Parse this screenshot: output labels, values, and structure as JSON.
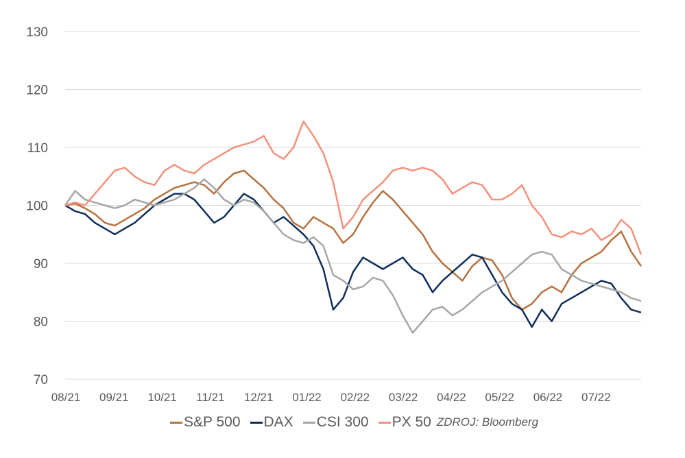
{
  "chart_data": {
    "type": "line",
    "title": "",
    "xlabel": "",
    "ylabel": "",
    "ylim": [
      70,
      130
    ],
    "yticks": [
      70,
      80,
      90,
      100,
      110,
      120,
      130
    ],
    "xticks": [
      "08/21",
      "09/21",
      "10/21",
      "11/21",
      "12/21",
      "01/22",
      "02/22",
      "03/22",
      "04/22",
      "05/22",
      "06/22",
      "07/22"
    ],
    "grid": true,
    "legend_position": "bottom",
    "source": "ZDROJ: Bloomberg",
    "x_note": "weeks since start (0 = 08/21, ~52 = end of 07/22)",
    "series": [
      {
        "name": "S&P 500",
        "color": "#B5713F",
        "values": [
          100,
          100.3,
          99.5,
          98.5,
          97,
          96.5,
          97.5,
          98.5,
          99.5,
          101,
          102,
          103,
          103.5,
          104,
          103.5,
          102,
          104,
          105.5,
          106,
          104.5,
          103,
          101,
          99.5,
          97,
          96,
          98,
          97,
          96,
          93.5,
          95,
          98,
          100.5,
          102.5,
          101,
          99,
          97,
          95,
          92,
          90,
          88.5,
          87,
          89.5,
          91,
          90.5,
          88,
          84,
          82,
          83,
          85,
          86,
          85,
          88,
          90,
          91,
          92,
          94,
          95.5,
          92,
          89.5
        ]
      },
      {
        "name": "DAX",
        "color": "#0E2D5B",
        "values": [
          100,
          99,
          98.5,
          97,
          96,
          95,
          96,
          97,
          98.5,
          100,
          101,
          102,
          102,
          101,
          99,
          97,
          98,
          100,
          102,
          101,
          99,
          97,
          98,
          96.5,
          95,
          93,
          89,
          82,
          84,
          88.5,
          91,
          90,
          89,
          90,
          91,
          89,
          88,
          85,
          87,
          88.5,
          90,
          91.5,
          91,
          88,
          85,
          83,
          82,
          79,
          82,
          80,
          83,
          84,
          85,
          86,
          87,
          86.5,
          84,
          82,
          81.5
        ]
      },
      {
        "name": "CSI 300",
        "color": "#A6A6A6",
        "values": [
          100,
          102.5,
          101,
          100.5,
          100,
          99.5,
          100,
          101,
          100.5,
          100,
          100.5,
          101,
          102,
          103,
          104.5,
          103,
          101,
          100,
          101,
          100.5,
          99,
          97,
          95,
          94,
          93.5,
          94.5,
          93,
          88,
          87,
          85.5,
          86,
          87.5,
          87,
          84.5,
          81,
          78,
          80,
          82,
          82.5,
          81,
          82,
          83.5,
          85,
          86,
          87,
          88.5,
          90,
          91.5,
          92,
          91.5,
          89,
          88,
          87,
          86.5,
          86,
          85.5,
          85,
          84,
          83.5
        ]
      },
      {
        "name": "PX 50",
        "color": "#F4907B",
        "values": [
          100,
          100.5,
          100,
          102,
          104,
          106,
          106.5,
          105,
          104,
          103.5,
          106,
          107,
          106,
          105.5,
          107,
          108,
          109,
          110,
          110.5,
          111,
          112,
          109,
          108,
          110,
          114.5,
          112,
          109,
          104,
          96,
          98,
          101,
          102.5,
          104,
          106,
          106.5,
          106,
          106.5,
          106,
          104.5,
          102,
          103,
          104,
          103.5,
          101,
          101,
          102,
          103.5,
          100,
          98,
          95,
          94.5,
          95.5,
          95,
          96,
          94,
          95,
          97.5,
          96,
          91.5
        ]
      }
    ]
  }
}
